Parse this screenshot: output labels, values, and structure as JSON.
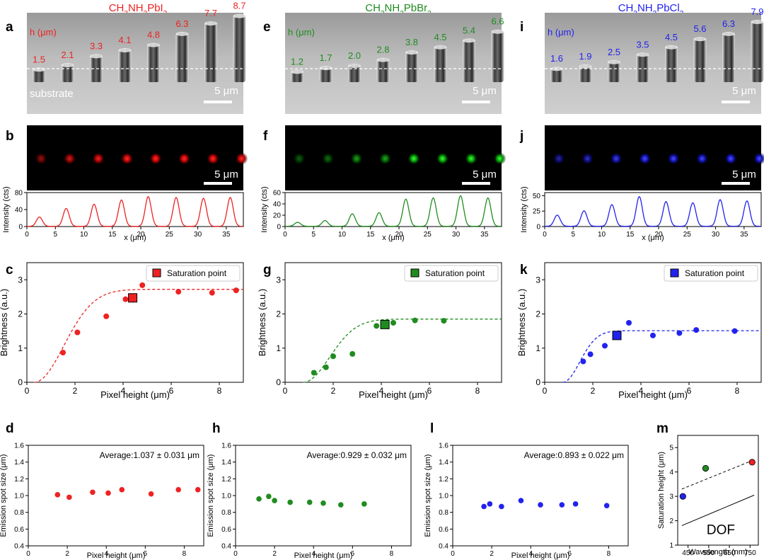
{
  "columns": [
    {
      "compound_html": "CH<tspan baseline-shift='sub' font-size='10'>3</tspan>NH<tspan baseline-shift='sub' font-size='10'>3</tspan>PbI<tspan baseline-shift='sub' font-size='10'>3</tspan>",
      "compound": "CH3NH3PbI3",
      "color": "#ee2222"
    },
    {
      "compound": "CH3NH3PbBr3",
      "color": "#1f8c1f"
    },
    {
      "compound": "CH3NH3PbCl3",
      "color": "#2222ee"
    }
  ],
  "panel_letters": [
    "a",
    "b",
    "c",
    "d",
    "e",
    "f",
    "g",
    "h",
    "i",
    "j",
    "k",
    "l",
    "m"
  ],
  "micrographs": {
    "h_label": "h (μm)",
    "substrate_label": "substrate",
    "scale_bar_label": "5 μm",
    "heights": [
      [
        "1.5",
        "2.1",
        "3.3",
        "4.1",
        "4.8",
        "6.3",
        "7.7",
        "8.7"
      ],
      [
        "1.2",
        "1.7",
        "2.0",
        "2.8",
        "3.8",
        "4.5",
        "5.4",
        "6.6"
      ],
      [
        "1.6",
        "1.9",
        "2.5",
        "3.5",
        "4.5",
        "5.6",
        "6.3",
        "7.9"
      ]
    ]
  },
  "chart_data": [
    {
      "panel": "b",
      "type": "line",
      "title": "",
      "xlabel": "x (μm)",
      "ylabel": "Intensity (cts)",
      "xlim": [
        0,
        38
      ],
      "ylim": [
        0,
        80
      ],
      "xticks": [
        0,
        5,
        10,
        15,
        20,
        25,
        30,
        35
      ],
      "yticks": [
        0,
        40,
        80
      ],
      "peaks_x": [
        2.2,
        6.9,
        11.8,
        16.6,
        21.3,
        26.2,
        31.0,
        35.7
      ],
      "peaks_y": [
        22,
        42,
        52,
        62,
        70,
        68,
        66,
        68
      ]
    },
    {
      "panel": "f",
      "type": "line",
      "title": "",
      "xlabel": "x (μm)",
      "ylabel": "Intensity (cts)",
      "xlim": [
        0,
        38
      ],
      "ylim": [
        0,
        60
      ],
      "xticks": [
        0,
        5,
        10,
        15,
        20,
        25,
        30,
        35
      ],
      "yticks": [
        0,
        20,
        40,
        60
      ],
      "peaks_x": [
        2.2,
        7.0,
        11.8,
        16.5,
        21.2,
        26.0,
        30.8,
        35.6
      ],
      "peaks_y": [
        7,
        10,
        22,
        24,
        48,
        50,
        54,
        50
      ]
    },
    {
      "panel": "j",
      "type": "line",
      "title": "",
      "xlabel": "x (μm)",
      "ylabel": "Intensity (cts)",
      "xlim": [
        0,
        38
      ],
      "ylim": [
        0,
        55
      ],
      "xticks": [
        0,
        5,
        10,
        15,
        20,
        25,
        30,
        35
      ],
      "yticks": [
        0,
        25,
        50
      ],
      "peaks_x": [
        2.2,
        6.9,
        11.8,
        16.6,
        21.3,
        26.0,
        30.8,
        35.5
      ],
      "peaks_y": [
        18,
        25,
        35,
        48,
        40,
        38,
        43,
        41
      ]
    },
    {
      "panel": "c",
      "type": "scatter",
      "xlabel": "Pixel height (μm)",
      "ylabel": "Brightness (a.u.)",
      "xlim": [
        0,
        9
      ],
      "ylim": [
        0,
        3.5
      ],
      "xticks": [
        0,
        2,
        4,
        6,
        8
      ],
      "yticks": [
        0,
        1,
        2,
        3
      ],
      "x": [
        1.5,
        2.1,
        3.3,
        4.1,
        4.8,
        6.3,
        7.7,
        8.7
      ],
      "y": [
        0.87,
        1.46,
        1.93,
        2.43,
        2.84,
        2.65,
        2.62,
        2.69
      ],
      "saturation_point": {
        "x": 4.4,
        "y": 2.47
      },
      "fit": {
        "a": 2.72,
        "x0": 0.3,
        "w": 1.75
      },
      "legend": "Saturation point"
    },
    {
      "panel": "g",
      "type": "scatter",
      "xlabel": "Pixel height (μm)",
      "ylabel": "Brightness (a.u.)",
      "xlim": [
        0,
        9
      ],
      "ylim": [
        0,
        3.5
      ],
      "xticks": [
        0,
        2,
        4,
        6,
        8
      ],
      "yticks": [
        0,
        1,
        2,
        3
      ],
      "x": [
        1.2,
        1.7,
        2.0,
        2.8,
        3.8,
        4.5,
        5.4,
        6.6
      ],
      "y": [
        0.28,
        0.44,
        0.76,
        0.83,
        1.65,
        1.74,
        1.81,
        1.8
      ],
      "saturation_point": {
        "x": 4.15,
        "y": 1.69
      },
      "fit": {
        "a": 1.85,
        "x0": 0.75,
        "w": 1.55
      },
      "legend": "Saturation point"
    },
    {
      "panel": "k",
      "type": "scatter",
      "xlabel": "Pixel height (μm)",
      "ylabel": "Brightness (a.u.)",
      "xlim": [
        0,
        9
      ],
      "ylim": [
        0,
        3.5
      ],
      "xticks": [
        0,
        2,
        4,
        6,
        8
      ],
      "yticks": [
        0,
        1,
        2,
        3
      ],
      "x": [
        1.6,
        1.9,
        2.5,
        3.5,
        4.5,
        5.6,
        6.3,
        7.9
      ],
      "y": [
        0.61,
        0.82,
        1.07,
        1.74,
        1.37,
        1.44,
        1.53,
        1.5
      ],
      "saturation_point": {
        "x": 3.0,
        "y": 1.37
      },
      "fit": {
        "a": 1.51,
        "x0": 0.75,
        "w": 1.0
      },
      "legend": "Saturation point"
    },
    {
      "panel": "d",
      "type": "scatter",
      "xlabel": "Pixel height (μm)",
      "ylabel": "Emission spot size (μm)",
      "xlim": [
        0,
        9
      ],
      "ylim": [
        0.4,
        1.6
      ],
      "xticks": [
        0,
        2,
        4,
        6,
        8
      ],
      "yticks": [
        0.4,
        0.6,
        0.8,
        1.0,
        1.2,
        1.4,
        1.6
      ],
      "x": [
        1.5,
        2.1,
        3.3,
        4.1,
        4.8,
        6.3,
        7.7,
        8.7
      ],
      "y": [
        1.01,
        0.98,
        1.04,
        1.03,
        1.07,
        1.02,
        1.07,
        1.07
      ],
      "annotation": "Average:1.037 ± 0.031 μm"
    },
    {
      "panel": "h",
      "type": "scatter",
      "xlabel": "Pixel height (μm)",
      "ylabel": "Emission spot size (μm)",
      "xlim": [
        0,
        9
      ],
      "ylim": [
        0.4,
        1.6
      ],
      "xticks": [
        0,
        2,
        4,
        6,
        8
      ],
      "yticks": [
        0.4,
        0.6,
        0.8,
        1.0,
        1.2,
        1.4,
        1.6
      ],
      "x": [
        1.2,
        1.7,
        2.0,
        2.8,
        3.8,
        4.5,
        5.4,
        6.6
      ],
      "y": [
        0.96,
        0.99,
        0.94,
        0.92,
        0.92,
        0.91,
        0.89,
        0.9
      ],
      "annotation": "Average:0.929 ± 0.032 μm"
    },
    {
      "panel": "l",
      "type": "scatter",
      "xlabel": "Pixel height (μm)",
      "ylabel": "Emission spot size (μm)",
      "xlim": [
        0,
        9
      ],
      "ylim": [
        0.4,
        1.6
      ],
      "xticks": [
        0,
        2,
        4,
        6,
        8
      ],
      "yticks": [
        0.4,
        0.6,
        0.8,
        1.0,
        1.2,
        1.4,
        1.6
      ],
      "x": [
        1.6,
        1.9,
        2.5,
        3.5,
        4.5,
        5.6,
        6.3,
        7.9
      ],
      "y": [
        0.87,
        0.9,
        0.87,
        0.94,
        0.89,
        0.89,
        0.9,
        0.88
      ],
      "annotation": "Average:0.893 ± 0.022 μm"
    },
    {
      "panel": "m",
      "type": "scatter",
      "xlabel": "Wavelength (nm)",
      "ylabel": "Saturation height (μm)",
      "xlim": [
        400,
        790
      ],
      "ylim": [
        1,
        5.5
      ],
      "xticks": [
        450,
        550,
        650,
        750
      ],
      "yticks": [
        1,
        2,
        3,
        4,
        5
      ],
      "points": [
        {
          "x": 425,
          "y": 3.0,
          "color": "#2222ee"
        },
        {
          "x": 535,
          "y": 4.15,
          "color": "#1f8c1f"
        },
        {
          "x": 760,
          "y": 4.4,
          "color": "#ee2222"
        }
      ],
      "trend": {
        "x": [
          420,
          770
        ],
        "y": [
          3.3,
          4.5
        ]
      },
      "dof": {
        "x": [
          420,
          770
        ],
        "y": [
          1.8,
          3.05
        ]
      },
      "dof_label": "DOF"
    }
  ]
}
